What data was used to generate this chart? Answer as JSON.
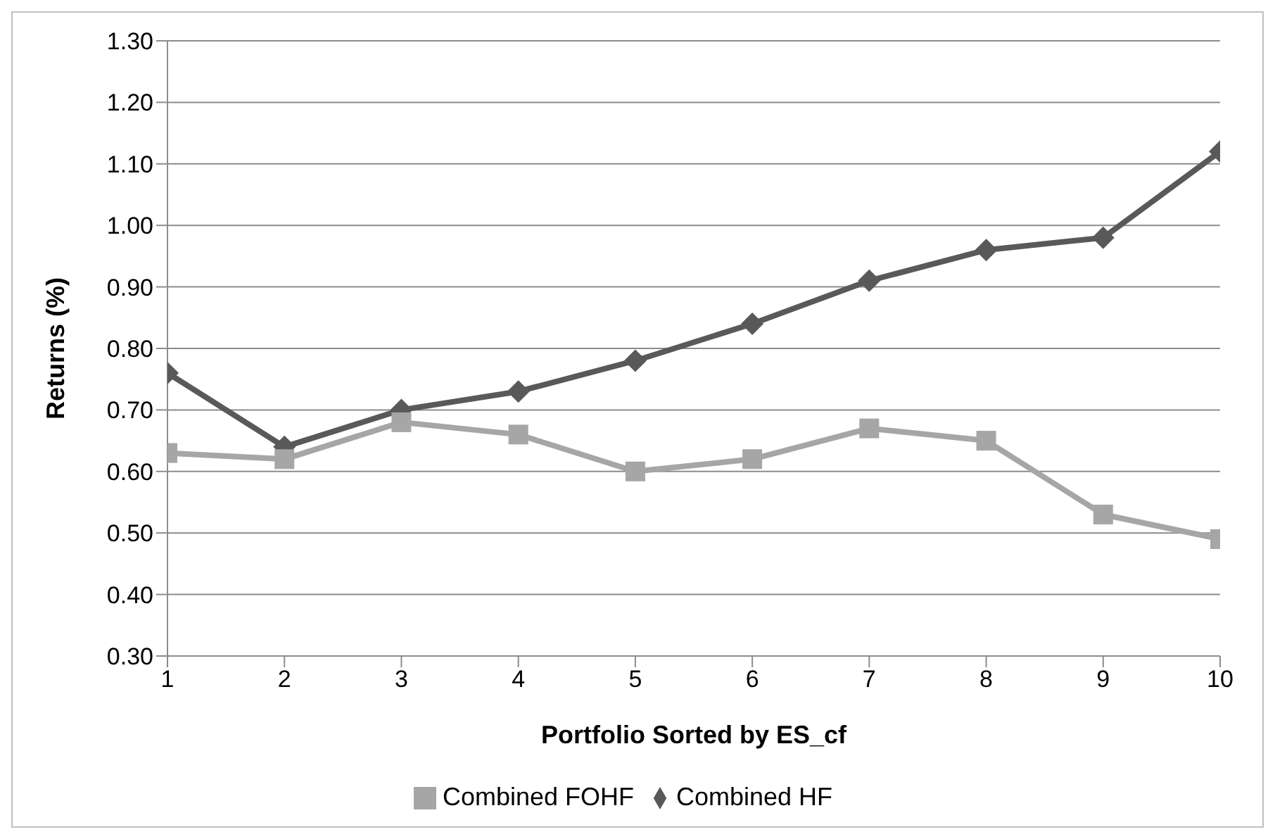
{
  "chart_data": {
    "type": "line",
    "xlabel": "Portfolio Sorted by ES_cf",
    "ylabel": "Returns (%)",
    "x": [
      1,
      2,
      3,
      4,
      5,
      6,
      7,
      8,
      9,
      10
    ],
    "xlim": [
      1,
      10
    ],
    "xticks": [
      1,
      2,
      3,
      4,
      5,
      6,
      7,
      8,
      9,
      10
    ],
    "ylim": [
      0.3,
      1.3
    ],
    "yticks": [
      {
        "value": 0.3,
        "label": "0.30"
      },
      {
        "value": 0.4,
        "label": "0.40"
      },
      {
        "value": 0.5,
        "label": "0.50"
      },
      {
        "value": 0.6,
        "label": "0.60"
      },
      {
        "value": 0.7,
        "label": "0.70"
      },
      {
        "value": 0.8,
        "label": "0.80"
      },
      {
        "value": 0.9,
        "label": "0.90"
      },
      {
        "value": 1.0,
        "label": "1.00"
      },
      {
        "value": 1.1,
        "label": "1.10"
      },
      {
        "value": 1.2,
        "label": "1.20"
      },
      {
        "value": 1.3,
        "label": "1.30"
      }
    ],
    "grid": "y",
    "legend": "bottom",
    "series": [
      {
        "name": "Combined HF",
        "color": "#595959",
        "marker": "diamond",
        "values": [
          0.76,
          0.64,
          0.7,
          0.73,
          0.78,
          0.84,
          0.91,
          0.96,
          0.98,
          1.12
        ]
      },
      {
        "name": "Combined FOHF",
        "color": "#a6a6a6",
        "marker": "square",
        "values": [
          0.63,
          0.62,
          0.68,
          0.66,
          0.6,
          0.62,
          0.67,
          0.65,
          0.53,
          0.49
        ]
      }
    ]
  }
}
